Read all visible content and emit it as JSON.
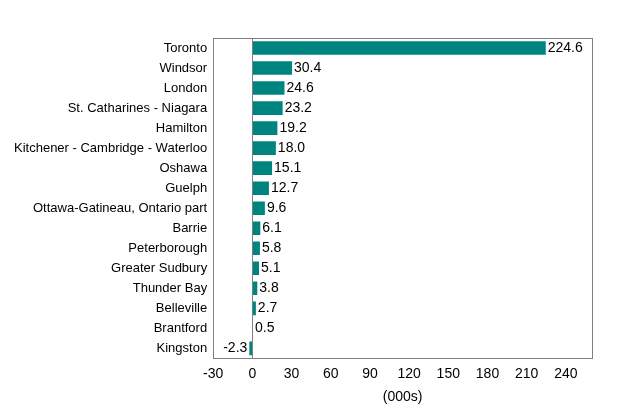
{
  "chart_data": {
    "type": "bar",
    "orientation": "horizontal",
    "categories": [
      "Toronto",
      "Windsor",
      "London",
      "St. Catharines - Niagara",
      "Hamilton",
      "Kitchener - Cambridge - Waterloo",
      "Oshawa",
      "Guelph",
      "Ottawa-Gatineau, Ontario part",
      "Barrie",
      "Peterborough",
      "Greater Sudbury",
      "Thunder Bay",
      "Belleville",
      "Brantford",
      "Kingston"
    ],
    "values": [
      224.6,
      30.4,
      24.6,
      23.2,
      19.2,
      18.0,
      15.1,
      12.7,
      9.6,
      6.1,
      5.8,
      5.1,
      3.8,
      2.7,
      0.5,
      -2.3
    ],
    "value_labels": [
      "224.6",
      "30.4",
      "24.6",
      "23.2",
      "19.2",
      "18.0",
      "15.1",
      "12.7",
      "9.6",
      "6.1",
      "5.8",
      "5.1",
      "3.8",
      "2.7",
      "0.5",
      "-2.3"
    ],
    "color": "#00847f",
    "x_label": "(000s)",
    "xlim": [
      -30,
      260
    ],
    "xticks": [
      -30,
      0,
      30,
      60,
      90,
      120,
      150,
      180,
      210,
      240
    ],
    "grid": false,
    "data_labels": true
  }
}
